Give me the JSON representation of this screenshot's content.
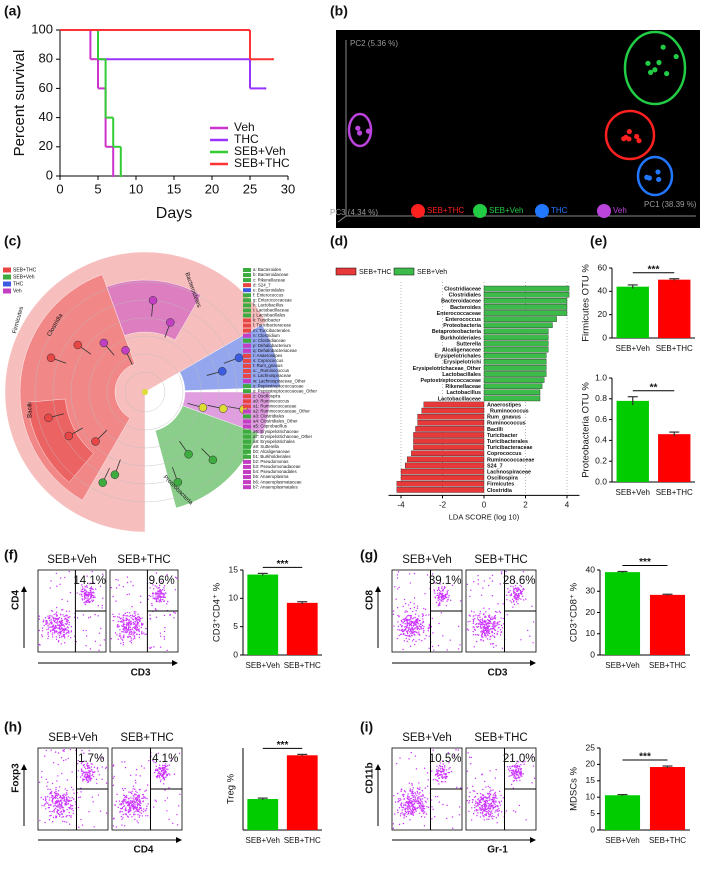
{
  "panel_labels": [
    "(a)",
    "(b)",
    "(c)",
    "(d)",
    "(e)",
    "(f)",
    "(g)",
    "(h)",
    "(i)"
  ],
  "chart_data": [
    {
      "type": "line",
      "drawstyle": "steps-post",
      "x_label": "Days",
      "y_label": "Percent survival",
      "xlim": [
        0,
        30
      ],
      "xticks": [
        0,
        5,
        10,
        15,
        20,
        25,
        30
      ],
      "ylim": [
        0,
        100
      ],
      "yticks": [
        0,
        20,
        40,
        60,
        80,
        100
      ],
      "legend": "lower right",
      "series": [
        {
          "name": "Veh",
          "color": "#cc33cc",
          "x": [
            0,
            4,
            5,
            6,
            7
          ],
          "values": [
            100,
            80,
            60,
            20,
            0
          ]
        },
        {
          "name": "THC",
          "color": "#9933ff",
          "x": [
            0,
            5,
            25,
            27
          ],
          "values": [
            100,
            80,
            60,
            60
          ]
        },
        {
          "name": "SEB+Veh",
          "color": "#33cc33",
          "x": [
            0,
            5,
            6,
            7,
            8
          ],
          "values": [
            100,
            80,
            40,
            20,
            0
          ]
        },
        {
          "name": "SEB+THC",
          "color": "#ff3333",
          "x": [
            0,
            25,
            28
          ],
          "values": [
            100,
            80,
            80
          ]
        }
      ]
    },
    {
      "type": "bar",
      "orientation": "horizontal",
      "x_label": "LDA SCORE (log 10)",
      "xlim": [
        -4.6,
        4.6
      ],
      "xticks": [
        -4,
        -2,
        0,
        2,
        4
      ],
      "grid": true,
      "categories": [
        "Clostridiaceae",
        "Clostridiales",
        "Bacteroidaceae",
        "Bacteroides",
        "Enterococcaceae",
        "Enterococcus",
        "Proteobacteria",
        "Betaproteobacteria",
        "Burkholderiales",
        "Sutterella",
        "Alcaligenaceae",
        "Erysipelotrichales",
        "Erysipelotrichi",
        "Erysipelotrichaceae_Other",
        "Lactobacillales",
        "Peptostreptococcaceae",
        "Rikenellaceae",
        "Lactobacillus",
        "Lactobacillaceae",
        "Anaerostipes",
        "_Ruminococcus",
        "Rum_gnavus",
        "Ruminococcus",
        "Bacilli",
        "Turicibacter",
        "Turicibacterales",
        "Turicibacteraceae",
        "Coprococcus",
        "Ruminococcaceae",
        "S24_7",
        "Lachnospiraceae",
        "Oscillospira",
        "Firmicutes",
        "Clostridia"
      ],
      "series": [
        {
          "name": "SEB+THC",
          "color": "#e8393a",
          "values": [
            null,
            null,
            null,
            null,
            null,
            null,
            null,
            null,
            null,
            null,
            null,
            null,
            null,
            null,
            null,
            null,
            null,
            null,
            null,
            -2.9,
            -3.0,
            -3.2,
            -3.2,
            -3.3,
            -3.4,
            -3.4,
            -3.4,
            -3.5,
            -3.7,
            -3.8,
            -4.0,
            -4.0,
            -4.2,
            -4.2
          ]
        },
        {
          "name": "SEB+Veh",
          "color": "#3dbb4a",
          "values": [
            4.1,
            4.1,
            4.0,
            4.0,
            4.0,
            3.5,
            3.3,
            3.1,
            3.1,
            3.1,
            3.1,
            3.0,
            3.0,
            3.0,
            3.0,
            2.9,
            2.8,
            2.7,
            2.7,
            null,
            null,
            null,
            null,
            null,
            null,
            null,
            null,
            null,
            null,
            null,
            null,
            null,
            null,
            null
          ]
        }
      ]
    },
    {
      "type": "bar",
      "y_label": "Firmicutes OTU %",
      "categories": [
        "SEB+Veh",
        "SEB+THC"
      ],
      "values": [
        44,
        50
      ],
      "errors": [
        1.5,
        0.8
      ],
      "colors": [
        "#00cc00",
        "#ff0000"
      ],
      "significance": "***",
      "ylim": [
        0,
        60
      ],
      "yticks": [
        0,
        20,
        40,
        60
      ]
    },
    {
      "type": "bar",
      "y_label": "Proteobacteria OTU %",
      "categories": [
        "SEB+Veh",
        "SEB+THC"
      ],
      "values": [
        0.78,
        0.46
      ],
      "errors": [
        0.04,
        0.02
      ],
      "colors": [
        "#00cc00",
        "#ff0000"
      ],
      "significance": "**",
      "ylim": [
        0,
        1
      ],
      "yticks": [
        {
          "value": 0,
          "label": "0.0"
        },
        0.2,
        0.4,
        0.6,
        0.8,
        {
          "value": 1,
          "label": "1.0"
        }
      ]
    },
    {
      "type": "bar",
      "y_label": "CD3⁺CD4⁺ %",
      "categories": [
        "SEB+Veh",
        "SEB+THC"
      ],
      "values": [
        14.2,
        9.2
      ],
      "errors": [
        0.2,
        0.2
      ],
      "colors": [
        "#00cc00",
        "#ff0000"
      ],
      "significance": "***",
      "ylim": [
        0,
        15
      ],
      "yticks": [
        0,
        5,
        10,
        15
      ]
    },
    {
      "type": "bar",
      "y_label": "CD3⁺CD8⁺ %",
      "categories": [
        "SEB+Veh",
        "SEB+THC"
      ],
      "values": [
        39,
        28.3
      ],
      "errors": [
        0.3,
        0.3
      ],
      "colors": [
        "#00cc00",
        "#ff0000"
      ],
      "significance": "***",
      "ylim": [
        0,
        40
      ],
      "yticks": [
        0,
        10,
        20,
        30,
        40
      ]
    },
    {
      "type": "bar",
      "y_label": "Treg %",
      "categories": [
        "SEB+Veh",
        "SEB+THC"
      ],
      "values": [
        1.7,
        4.1
      ],
      "errors": [
        0.05,
        0.05
      ],
      "colors": [
        "#00cc00",
        "#ff0000"
      ],
      "significance": "***",
      "ylim": [
        0,
        4.5
      ]
    },
    {
      "type": "bar",
      "y_label": "MDSCs %",
      "categories": [
        "SEB+Veh",
        "SEB+THC"
      ],
      "values": [
        10.6,
        19.2
      ],
      "errors": [
        0.2,
        0.3
      ],
      "colors": [
        "#00cc00",
        "#ff0000"
      ],
      "significance": "***",
      "ylim": [
        0,
        25
      ],
      "yticks": [
        0,
        5,
        10,
        15,
        20,
        25
      ]
    }
  ],
  "pca": {
    "axes": [
      "PC1 (38.39 %)",
      "PC2 (5.36 %)",
      "PC3 (4.34 %)"
    ],
    "groups": [
      {
        "name": "SEB+THC",
        "color": "#ff2020"
      },
      {
        "name": "SEB+Veh",
        "color": "#22cc44"
      },
      {
        "name": "THC",
        "color": "#2277ff"
      },
      {
        "name": "Veh",
        "color": "#bb44dd"
      }
    ]
  },
  "cladogram": {
    "groups": [
      {
        "name": "SEB+THC",
        "color": "#e84545"
      },
      {
        "name": "SEB+Veh",
        "color": "#3dab3d"
      },
      {
        "name": "THC",
        "color": "#3c5ce0"
      },
      {
        "name": "Veh",
        "color": "#c23ec2"
      }
    ],
    "clade_labels": [
      "Firmicutes",
      "Clostridia",
      "Bacilli",
      "Bacteroidetes",
      "Proteobacteria"
    ],
    "taxa": [
      {
        "label": "a: Bacteroides",
        "color": "#3dab3d"
      },
      {
        "label": "b: Bacteroidaceae",
        "color": "#3dab3d"
      },
      {
        "label": "c: Rikenellaceae",
        "color": "#3dab3d"
      },
      {
        "label": "d: S24_7",
        "color": "#e84545"
      },
      {
        "label": "e: Bacteroidales",
        "color": "#3c5ce0"
      },
      {
        "label": "f: Enterococcus",
        "color": "#3dab3d"
      },
      {
        "label": "g: Enterococcaceae",
        "color": "#3dab3d"
      },
      {
        "label": "h: Lactobacillus",
        "color": "#3dab3d"
      },
      {
        "label": "i: Lactobacillaceae",
        "color": "#3dab3d"
      },
      {
        "label": "j: Lactobacillales",
        "color": "#3dab3d"
      },
      {
        "label": "k: Turicibacter",
        "color": "#e84545"
      },
      {
        "label": "l: Turicibacteraceae",
        "color": "#e84545"
      },
      {
        "label": "m: Turicibacterales",
        "color": "#e84545"
      },
      {
        "label": "n: Clostridium",
        "color": "#c23ec2"
      },
      {
        "label": "o: Clostridiaceae",
        "color": "#3dab3d"
      },
      {
        "label": "p: Dehalobacterium",
        "color": "#c23ec2"
      },
      {
        "label": "q: Dehalobacteriaceae",
        "color": "#c23ec2"
      },
      {
        "label": "r: Anaerostipes",
        "color": "#e84545"
      },
      {
        "label": "s: Coprococcus",
        "color": "#e84545"
      },
      {
        "label": "t: Rum_gnavus",
        "color": "#e84545"
      },
      {
        "label": "u: _Ruminococcus",
        "color": "#e84545"
      },
      {
        "label": "v: Lachnospiraceae",
        "color": "#e84545"
      },
      {
        "label": "w: Lachnospiraceae_Other",
        "color": "#c23ec2"
      },
      {
        "label": "x: Peptostreptococcaceae",
        "color": "#3dab3d"
      },
      {
        "label": "y: Peptostreptococcaceae_Other",
        "color": "#3dab3d"
      },
      {
        "label": "z: Oscillospira",
        "color": "#e84545"
      },
      {
        "label": "a0: Ruminococcus",
        "color": "#e84545"
      },
      {
        "label": "a1: Ruminococcaceae",
        "color": "#e84545"
      },
      {
        "label": "a2: Ruminococcaceae_Other",
        "color": "#c23ec2"
      },
      {
        "label": "a3: Clostridiales",
        "color": "#3dab3d"
      },
      {
        "label": "a4: Clostridiales_Other",
        "color": "#c23ec2"
      },
      {
        "label": "a5: Coprobacillus",
        "color": "#c23ec2"
      },
      {
        "label": "a6: Erysipelotrichaceae",
        "color": "#3dab3d"
      },
      {
        "label": "a7: Erysipelotrichaceae_Other",
        "color": "#3dab3d"
      },
      {
        "label": "a8: Erysipelotrichales",
        "color": "#3dab3d"
      },
      {
        "label": "a9: Sutterella",
        "color": "#3dab3d"
      },
      {
        "label": "b0: Alcaligenaceae",
        "color": "#3dab3d"
      },
      {
        "label": "b1: Burkholderiales",
        "color": "#3dab3d"
      },
      {
        "label": "b2: Pseudomonas",
        "color": "#c23ec2"
      },
      {
        "label": "b3: Pseudomonadaceae",
        "color": "#c23ec2"
      },
      {
        "label": "b4: Pseudomonadales",
        "color": "#c23ec2"
      },
      {
        "label": "b5: Anaeroplasma",
        "color": "#c23ec2"
      },
      {
        "label": "b6: Anaeroplasmataceae",
        "color": "#c23ec2"
      },
      {
        "label": "b7: Anaeroplasmatales",
        "color": "#c23ec2"
      }
    ]
  },
  "flow_panels": [
    {
      "x_label": "CD3",
      "y_label": "CD4",
      "samples": [
        {
          "name": "SEB+Veh",
          "percent": "14.1%"
        },
        {
          "name": "SEB+THC",
          "percent": "9.6%"
        }
      ]
    },
    {
      "x_label": "CD3",
      "y_label": "CD8",
      "samples": [
        {
          "name": "SEB+Veh",
          "percent": "39.1%"
        },
        {
          "name": "SEB+THC",
          "percent": "28.6%"
        }
      ]
    },
    {
      "x_label": "CD4",
      "y_label": "Foxp3",
      "samples": [
        {
          "name": "SEB+Veh",
          "percent": "1.7%"
        },
        {
          "name": "SEB+THC",
          "percent": "4.1%"
        }
      ]
    },
    {
      "x_label": "Gr-1",
      "y_label": "CD11b",
      "samples": [
        {
          "name": "SEB+Veh",
          "percent": "10.5%"
        },
        {
          "name": "SEB+THC",
          "percent": "21.0%"
        }
      ]
    }
  ]
}
